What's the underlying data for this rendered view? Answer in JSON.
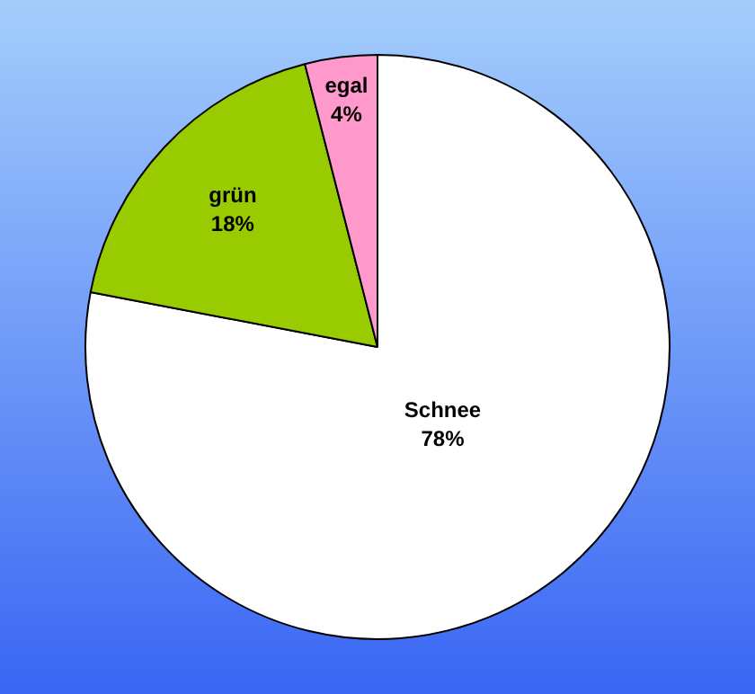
{
  "chart_data": {
    "type": "pie",
    "categories": [
      "Schnee",
      "grün",
      "egal"
    ],
    "values": [
      78,
      18,
      4
    ],
    "colors": [
      "#ffffff",
      "#99cc00",
      "#ff99cc"
    ],
    "value_labels": [
      "78%",
      "18%",
      "4%"
    ],
    "legend": false
  }
}
